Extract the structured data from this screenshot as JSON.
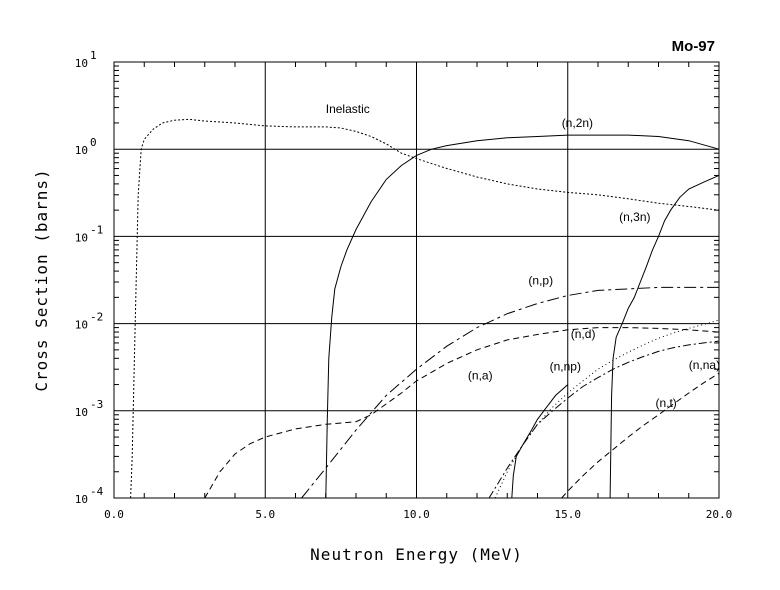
{
  "chart_data": {
    "type": "line",
    "title": "Mo-97",
    "xlabel": "Neutron Energy (MeV)",
    "ylabel": "Cross Section (barns)",
    "xlim": [
      0,
      20
    ],
    "ylim": [
      0.0001,
      10
    ],
    "yscale": "log",
    "grid": true,
    "x_ticks": [
      "0.0",
      "5.0",
      "10.0",
      "15.0",
      "20.0"
    ],
    "y_ticks": [
      {
        "base": "10",
        "exp": "-4"
      },
      {
        "base": "10",
        "exp": "-3"
      },
      {
        "base": "10",
        "exp": "-2"
      },
      {
        "base": "10",
        "exp": "-1"
      },
      {
        "base": "10",
        "exp": "0"
      },
      {
        "base": "10",
        "exp": "1"
      }
    ],
    "series": [
      {
        "name": "Inelastic",
        "dash": "2,2",
        "x": [
          0.55,
          0.6,
          0.7,
          0.8,
          0.9,
          1.0,
          1.3,
          1.6,
          2.0,
          2.5,
          3.0,
          4.0,
          5.0,
          6.0,
          7.0,
          7.5,
          8.0,
          8.5,
          9.0,
          9.5,
          10.0,
          11.0,
          12.0,
          13.0,
          14.0,
          15.0,
          16.0,
          17.0,
          18.0,
          19.0,
          20.0
        ],
        "y": [
          0.0001,
          0.0003,
          0.01,
          0.3,
          1.0,
          1.3,
          1.7,
          2.0,
          2.15,
          2.2,
          2.1,
          2.0,
          1.85,
          1.8,
          1.8,
          1.75,
          1.6,
          1.4,
          1.15,
          0.9,
          0.78,
          0.6,
          0.48,
          0.4,
          0.35,
          0.32,
          0.3,
          0.27,
          0.24,
          0.22,
          0.2
        ]
      },
      {
        "name": "(n,2n)",
        "dash": "",
        "x": [
          7.0,
          7.05,
          7.1,
          7.2,
          7.3,
          7.5,
          7.7,
          8.0,
          8.5,
          9.0,
          9.5,
          10.0,
          10.5,
          11.0,
          12.0,
          13.0,
          14.0,
          15.0,
          16.0,
          17.0,
          18.0,
          19.0,
          20.0
        ],
        "y": [
          0.0001,
          0.0008,
          0.004,
          0.012,
          0.025,
          0.045,
          0.07,
          0.12,
          0.25,
          0.45,
          0.65,
          0.85,
          1.0,
          1.1,
          1.25,
          1.35,
          1.4,
          1.45,
          1.45,
          1.45,
          1.4,
          1.25,
          1.0
        ]
      },
      {
        "name": "(n,3n)",
        "dash": "",
        "x": [
          16.4,
          16.45,
          16.5,
          16.6,
          16.8,
          17.0,
          17.2,
          17.4,
          17.6,
          17.8,
          18.0,
          18.2,
          18.4,
          18.7,
          19.0,
          19.5,
          20.0
        ],
        "y": [
          0.0001,
          0.0015,
          0.004,
          0.007,
          0.01,
          0.015,
          0.02,
          0.03,
          0.045,
          0.07,
          0.1,
          0.15,
          0.2,
          0.28,
          0.35,
          0.42,
          0.5
        ]
      },
      {
        "name": "(n,p)",
        "dash": "12,4,3,4",
        "x": [
          6.2,
          7.0,
          8.0,
          9.0,
          10.0,
          11.0,
          12.0,
          13.0,
          14.0,
          15.0,
          16.0,
          17.0,
          18.0,
          19.0,
          20.0
        ],
        "y": [
          0.0001,
          0.00022,
          0.0006,
          0.0015,
          0.003,
          0.0055,
          0.009,
          0.013,
          0.017,
          0.021,
          0.024,
          0.025,
          0.026,
          0.026,
          0.026
        ]
      },
      {
        "name": "(n,a)",
        "dash": "6,4",
        "x": [
          3.0,
          3.5,
          4.0,
          4.5,
          5.0,
          6.0,
          7.0,
          8.0,
          8.5,
          9.0,
          9.5,
          10.0,
          11.0,
          12.0,
          13.0,
          14.0,
          15.0,
          16.0,
          17.0,
          18.0,
          19.0,
          20.0
        ],
        "y": [
          0.0001,
          0.0002,
          0.00032,
          0.00042,
          0.0005,
          0.00062,
          0.0007,
          0.00075,
          0.0009,
          0.0012,
          0.0016,
          0.0022,
          0.0035,
          0.005,
          0.0065,
          0.0075,
          0.0085,
          0.009,
          0.009,
          0.0088,
          0.0085,
          0.008
        ]
      },
      {
        "name": "(n,d)",
        "dash": "1,3",
        "x": [
          12.6,
          13.0,
          13.5,
          14.0,
          14.5,
          15.0,
          15.5,
          16.0,
          16.5,
          17.0,
          17.5,
          18.0,
          18.5,
          19.0,
          19.5,
          20.0
        ],
        "y": [
          0.0001,
          0.0002,
          0.0004,
          0.0007,
          0.0011,
          0.0016,
          0.0022,
          0.003,
          0.0038,
          0.0047,
          0.0057,
          0.0068,
          0.0078,
          0.0088,
          0.0098,
          0.011
        ]
      },
      {
        "name": "(n,np)",
        "dash": "",
        "x": [
          13.15,
          13.2,
          13.3,
          13.5,
          13.8,
          14.0,
          14.3,
          14.6,
          15.0
        ],
        "y": [
          0.0001,
          0.00018,
          0.0003,
          0.0004,
          0.0006,
          0.0008,
          0.0011,
          0.0015,
          0.002
        ]
      },
      {
        "name": "(n,na)",
        "dash": "8,3,2,3",
        "x": [
          12.4,
          13.0,
          13.5,
          14.0,
          14.5,
          15.0,
          15.5,
          16.0,
          16.5,
          17.0,
          17.5,
          18.0,
          18.5,
          19.0,
          19.5,
          20.0
        ],
        "y": [
          0.0001,
          0.00022,
          0.0004,
          0.0007,
          0.001,
          0.0014,
          0.0019,
          0.0024,
          0.003,
          0.0036,
          0.0042,
          0.0048,
          0.0053,
          0.0057,
          0.006,
          0.0063
        ]
      },
      {
        "name": "(n,t)",
        "dash": "6,4",
        "x": [
          14.8,
          15.0,
          15.5,
          16.0,
          16.5,
          17.0,
          17.5,
          18.0,
          18.5,
          19.0,
          19.5,
          20.0
        ],
        "y": [
          0.0001,
          0.00012,
          0.00018,
          0.00026,
          0.00036,
          0.0005,
          0.00068,
          0.0009,
          0.0012,
          0.0016,
          0.0021,
          0.0027
        ]
      }
    ],
    "annotations": [
      {
        "text": "Inelastic",
        "x": 7.0,
        "y": 2.6
      },
      {
        "text": "(n,2n)",
        "x": 14.8,
        "y": 1.8
      },
      {
        "text": "(n,3n)",
        "x": 16.7,
        "y": 0.15
      },
      {
        "text": "(n,p)",
        "x": 13.7,
        "y": 0.028
      },
      {
        "text": "(n,d)",
        "x": 15.1,
        "y": 0.0068
      },
      {
        "text": "(n,a)",
        "x": 11.7,
        "y": 0.0023
      },
      {
        "text": "(n,np)",
        "x": 14.4,
        "y": 0.0029
      },
      {
        "text": "(n,na)",
        "x": 19.0,
        "y": 0.003
      },
      {
        "text": "(n,t)",
        "x": 17.9,
        "y": 0.0011
      }
    ]
  }
}
